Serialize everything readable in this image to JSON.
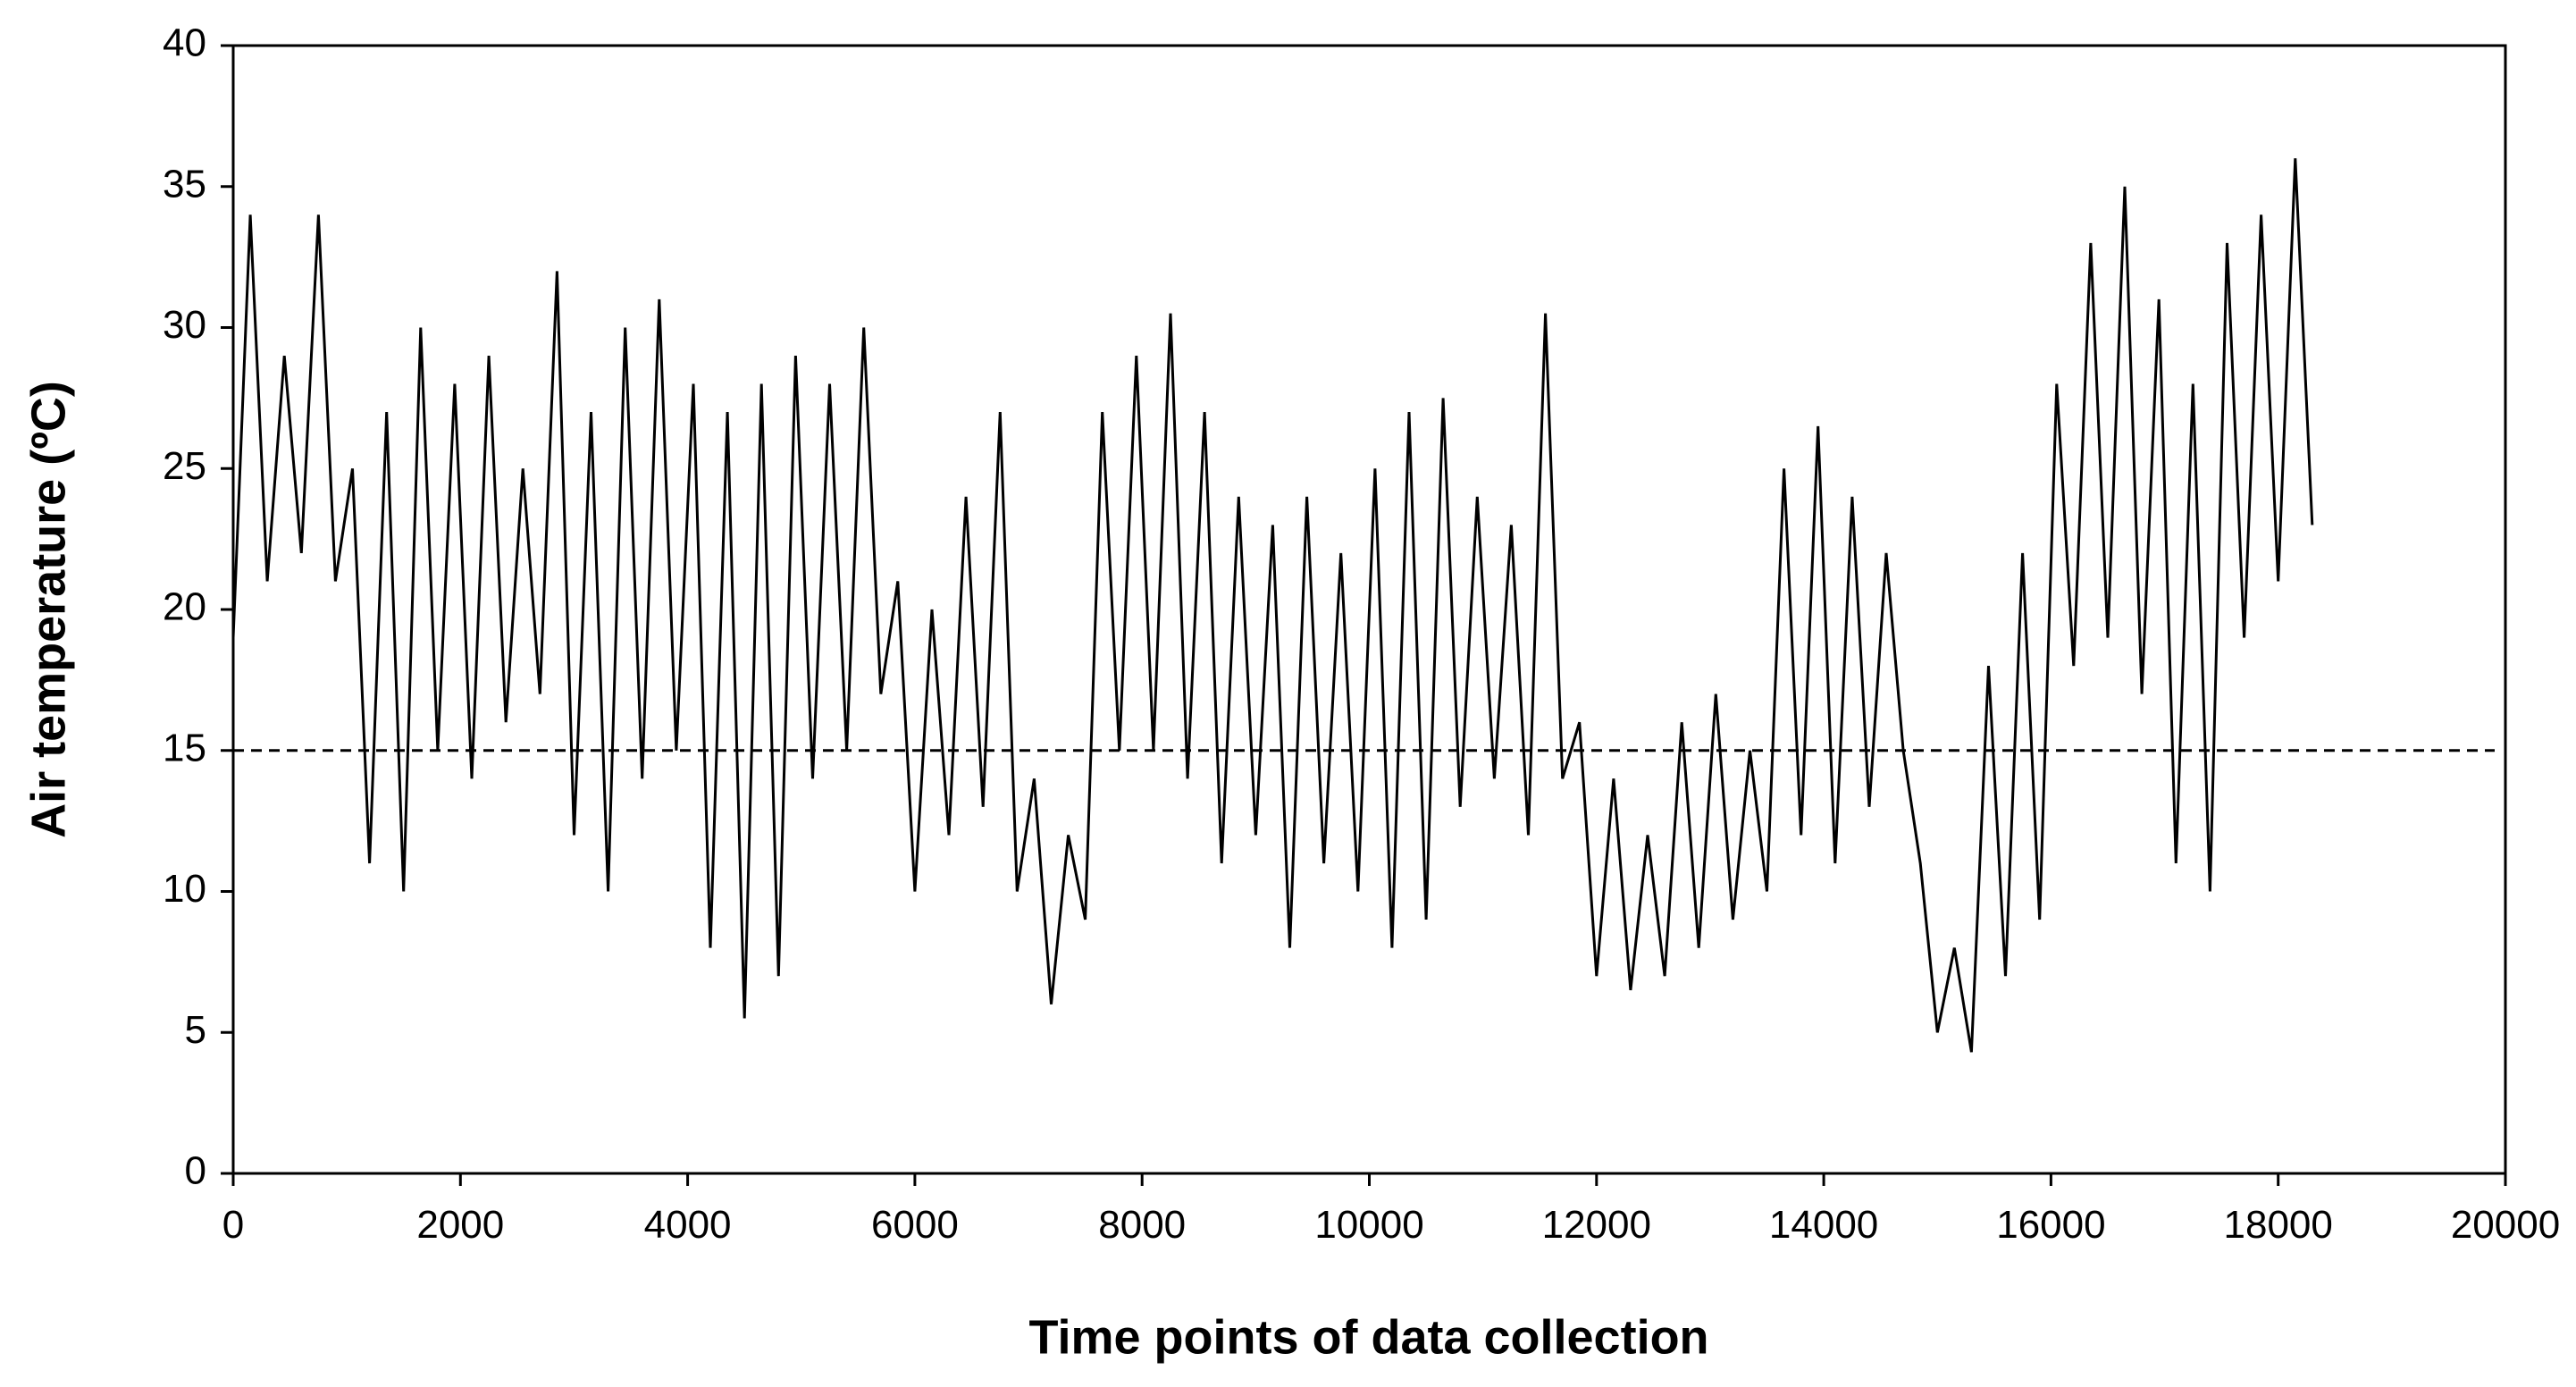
{
  "chart_data": {
    "type": "line",
    "x_label": "Time points of data collection",
    "y_label": "Air temperature (ºC)",
    "x": [
      0,
      150,
      300,
      450,
      600,
      750,
      900,
      1050,
      1200,
      1350,
      1500,
      1650,
      1800,
      1950,
      2100,
      2250,
      2400,
      2550,
      2700,
      2850,
      3000,
      3150,
      3300,
      3450,
      3600,
      3750,
      3900,
      4050,
      4200,
      4350,
      4500,
      4650,
      4800,
      4950,
      5100,
      5250,
      5400,
      5550,
      5700,
      5850,
      6000,
      6150,
      6300,
      6450,
      6600,
      6750,
      6900,
      7050,
      7200,
      7350,
      7500,
      7650,
      7800,
      7950,
      8100,
      8250,
      8400,
      8550,
      8700,
      8850,
      9000,
      9150,
      9300,
      9450,
      9600,
      9750,
      9900,
      10050,
      10200,
      10350,
      10500,
      10650,
      10800,
      10950,
      11100,
      11250,
      11400,
      11550,
      11700,
      11850,
      12000,
      12150,
      12300,
      12450,
      12600,
      12750,
      12900,
      13050,
      13200,
      13350,
      13500,
      13650,
      13800,
      13950,
      14100,
      14250,
      14400,
      14550,
      14700,
      14850,
      15000,
      15150,
      15300,
      15450,
      15600,
      15750,
      15900,
      16050,
      16200,
      16350,
      16500,
      16650,
      16800,
      16950,
      17100,
      17250,
      17400,
      17550,
      17700,
      17850,
      18000,
      18150,
      18300
    ],
    "series": [
      {
        "color": "#000000",
        "values": [
          19,
          34,
          21,
          29,
          22,
          34,
          21,
          25,
          11,
          27,
          10,
          30,
          15,
          28,
          14,
          29,
          16,
          25,
          17,
          32,
          12,
          27,
          10,
          30,
          14,
          31,
          15,
          28,
          8,
          27,
          5.5,
          28,
          7,
          29,
          14,
          28,
          15,
          30,
          17,
          21,
          10,
          20,
          12,
          24,
          13,
          27,
          10,
          14,
          6,
          12,
          9,
          27,
          15,
          29,
          15,
          30.5,
          14,
          27,
          11,
          24,
          12,
          23,
          8,
          24,
          11,
          22,
          10,
          25,
          8,
          27,
          9,
          27.5,
          13,
          24,
          14,
          23,
          12,
          30.5,
          14,
          16,
          7,
          14,
          6.5,
          12,
          7,
          16,
          8,
          17,
          9,
          15,
          10,
          25,
          12,
          26.5,
          11,
          24,
          13,
          22,
          15,
          11,
          5,
          8,
          4.3,
          18,
          7,
          22,
          9,
          28,
          18,
          33,
          19,
          35,
          17,
          31,
          11,
          28,
          10,
          33,
          19,
          34,
          21,
          36,
          23
        ]
      }
    ],
    "reference_line": 15,
    "reference_color": "#000000",
    "xlim": [
      0,
      20000
    ],
    "xticks": [
      0,
      2000,
      4000,
      6000,
      8000,
      10000,
      12000,
      14000,
      16000,
      18000,
      20000
    ],
    "ylim": [
      0,
      40
    ],
    "yticks": [
      0,
      5,
      10,
      15,
      20,
      25,
      30,
      35,
      40
    ],
    "grid": false
  }
}
